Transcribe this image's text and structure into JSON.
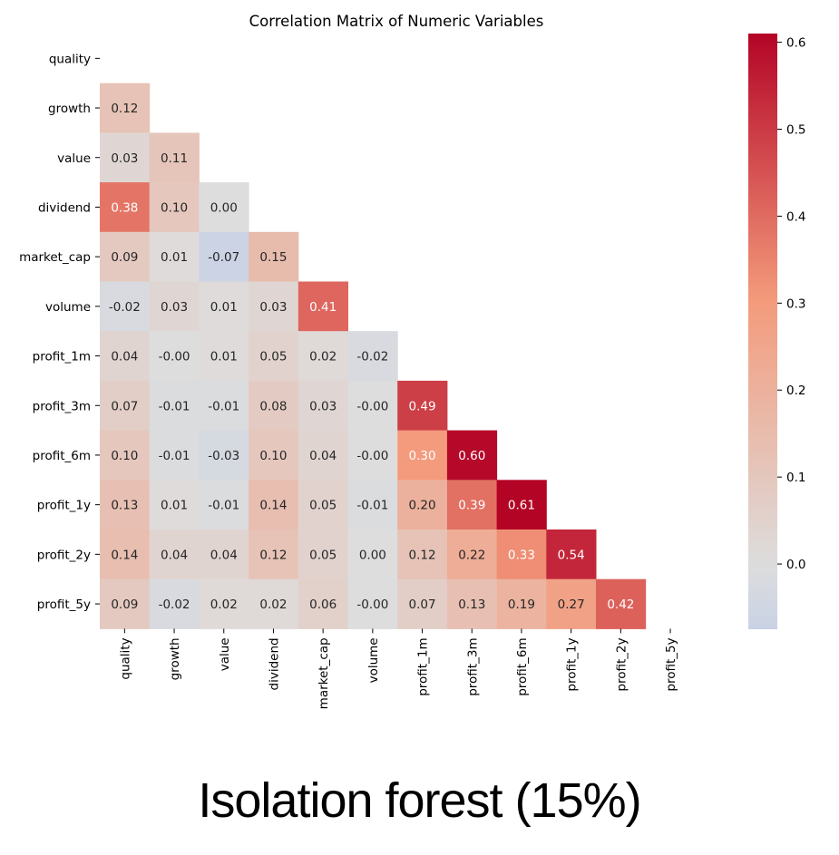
{
  "caption": "Isolation forest (15%)",
  "chart_data": {
    "type": "heatmap",
    "title": "Correlation Matrix of Numeric Variables",
    "xlabel": "",
    "ylabel": "",
    "variables": [
      "quality",
      "growth",
      "value",
      "dividend",
      "market_cap",
      "volume",
      "profit_1m",
      "profit_3m",
      "profit_6m",
      "profit_1y",
      "profit_2y",
      "profit_5y"
    ],
    "mask": "upper-triangle-including-diagonal",
    "lower_triangle": [
      [],
      [
        "0.12"
      ],
      [
        "0.03",
        "0.11"
      ],
      [
        "0.38",
        "0.10",
        "0.00"
      ],
      [
        "0.09",
        "0.01",
        "-0.07",
        "0.15"
      ],
      [
        "-0.02",
        "0.03",
        "0.01",
        "0.03",
        "0.41"
      ],
      [
        "0.04",
        "-0.00",
        "0.01",
        "0.05",
        "0.02",
        "-0.02"
      ],
      [
        "0.07",
        "-0.01",
        "-0.01",
        "0.08",
        "0.03",
        "-0.00",
        "0.49"
      ],
      [
        "0.10",
        "-0.01",
        "-0.03",
        "0.10",
        "0.04",
        "-0.00",
        "0.30",
        "0.60"
      ],
      [
        "0.13",
        "0.01",
        "-0.01",
        "0.14",
        "0.05",
        "-0.01",
        "0.20",
        "0.39",
        "0.61"
      ],
      [
        "0.14",
        "0.04",
        "0.04",
        "0.12",
        "0.05",
        "0.00",
        "0.12",
        "0.22",
        "0.33",
        "0.54"
      ],
      [
        "0.09",
        "-0.02",
        "0.02",
        "0.02",
        "0.06",
        "-0.00",
        "0.07",
        "0.13",
        "0.19",
        "0.27",
        "0.42"
      ]
    ],
    "colormap": "coolwarm",
    "colormap_center": 0,
    "color_min": -0.075,
    "color_max": 0.61,
    "colorbar_ticks": [
      "0.0",
      "0.1",
      "0.2",
      "0.3",
      "0.4",
      "0.5",
      "0.6"
    ],
    "annotation_light_threshold": 0.3
  }
}
